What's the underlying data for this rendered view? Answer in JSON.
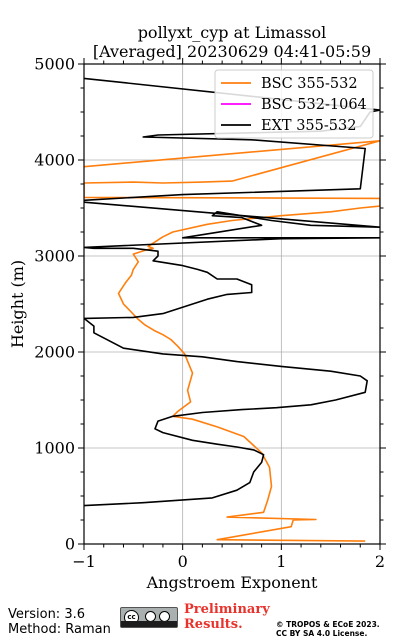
{
  "chart_data": {
    "type": "line",
    "title_line1": "pollyxt_cyp at Limassol",
    "title_line2": "[Averaged] 20230629 04:41-05:59",
    "xlabel": "Angstroem Exponent",
    "ylabel": "Height (m)",
    "xlim": [
      -1,
      2
    ],
    "ylim": [
      0,
      5000
    ],
    "xticks": [
      "−1",
      "0",
      "1",
      "2"
    ],
    "yticks": [
      "0",
      "1000",
      "2000",
      "3000",
      "4000",
      "5000"
    ],
    "grid": true,
    "legend_position": "top-right",
    "legend": [
      {
        "label": "BSC 355-532",
        "color": "#ff7f0e"
      },
      {
        "label": "BSC 532-1064",
        "color": "#ff00ff"
      },
      {
        "label": "EXT 355-532",
        "color": "#000000"
      }
    ],
    "series": [
      {
        "name": "BSC 355-532",
        "color": "#ff7f0e",
        "x": [
          1.85,
          0.35,
          1.1,
          1.12,
          1.35,
          0.45,
          0.82,
          0.86,
          0.9,
          0.88,
          0.8,
          0.62,
          0.35,
          0.1,
          -0.1,
          -0.05,
          0.08,
          0.05,
          0.1,
          0.02,
          -0.05,
          -0.12,
          -0.2,
          -0.28,
          -0.38,
          -0.45,
          -0.6,
          -0.65,
          -0.58,
          -0.52,
          -0.5,
          -0.45,
          -0.5,
          -0.38,
          -0.3,
          -0.35,
          -0.2,
          -0.1,
          0.25,
          0.5,
          0.8,
          1.0,
          1.5,
          1.8,
          2.0,
          2.0,
          -1.0,
          -1.0,
          -0.5,
          -0.2,
          0.2,
          0.5,
          2.0,
          -1.0
        ],
        "y": [
          30,
          45,
          180,
          250,
          255,
          280,
          330,
          450,
          600,
          800,
          950,
          1120,
          1220,
          1300,
          1330,
          1380,
          1480,
          1600,
          1780,
          1980,
          2060,
          2130,
          2180,
          2220,
          2280,
          2340,
          2500,
          2610,
          2720,
          2800,
          2860,
          2940,
          3020,
          3060,
          3080,
          3100,
          3200,
          3250,
          3330,
          3370,
          3400,
          3420,
          3460,
          3500,
          3520,
          3600,
          3610,
          3760,
          3770,
          3760,
          3770,
          3780,
          4200,
          3930
        ]
      },
      {
        "name": "BSC 532-1064",
        "color": "#ff00ff",
        "x": [],
        "y": []
      },
      {
        "name": "EXT 355-532",
        "color": "#000000",
        "x": [
          -1.0,
          -0.4,
          0.3,
          0.55,
          0.68,
          0.72,
          0.8,
          0.82,
          0.72,
          0.55,
          0.35,
          0.1,
          -0.2,
          -0.28,
          -0.25,
          -0.1,
          0.2,
          0.6,
          0.95,
          1.3,
          1.55,
          1.85,
          1.87,
          1.8,
          1.5,
          1.0,
          0.55,
          0.2,
          -0.2,
          -0.6,
          -0.9,
          -0.9,
          -1.0,
          -0.5,
          -0.2,
          0.25,
          0.45,
          0.7,
          0.7,
          0.55,
          0.35,
          0.25,
          0.15,
          0.0,
          -0.3,
          -0.25,
          -0.25,
          -0.5,
          -0.9,
          -1.0,
          1.0,
          2.0,
          0.0,
          0.8,
          0.6,
          0.3,
          0.35,
          0.9,
          1.3,
          2.0,
          -1.0,
          -1.0,
          0.0,
          1.8,
          1.85,
          0.7,
          -0.4,
          -0.25,
          1.4,
          1.8,
          1.9,
          2.0,
          -1.0
        ],
        "y": [
          400,
          430,
          480,
          560,
          640,
          750,
          850,
          930,
          980,
          1010,
          1040,
          1080,
          1160,
          1200,
          1280,
          1330,
          1370,
          1400,
          1420,
          1450,
          1500,
          1580,
          1700,
          1750,
          1800,
          1850,
          1900,
          1950,
          1980,
          2040,
          2200,
          2270,
          2350,
          2360,
          2400,
          2550,
          2600,
          2620,
          2700,
          2760,
          2760,
          2830,
          2860,
          2900,
          2950,
          3000,
          3050,
          3080,
          3080,
          3090,
          3180,
          3190,
          3190,
          3320,
          3400,
          3420,
          3460,
          3370,
          3320,
          3300,
          3560,
          3580,
          3640,
          3700,
          4120,
          4210,
          4240,
          4260,
          4300,
          4350,
          4500,
          4520,
          4850
        ]
      }
    ]
  },
  "footer": {
    "version": "Version: 3.6",
    "method": "Method: Raman",
    "license_badge_text": "cc",
    "preliminary_line1": "Preliminary",
    "preliminary_line2": "Results.",
    "copyright_line1": "© TROPOS & ECoE 2023.",
    "copyright_line2": "CC BY SA 4.0 License."
  },
  "colors": {
    "accent_preliminary": "#e8322c",
    "grid": "#b0b0b0"
  }
}
